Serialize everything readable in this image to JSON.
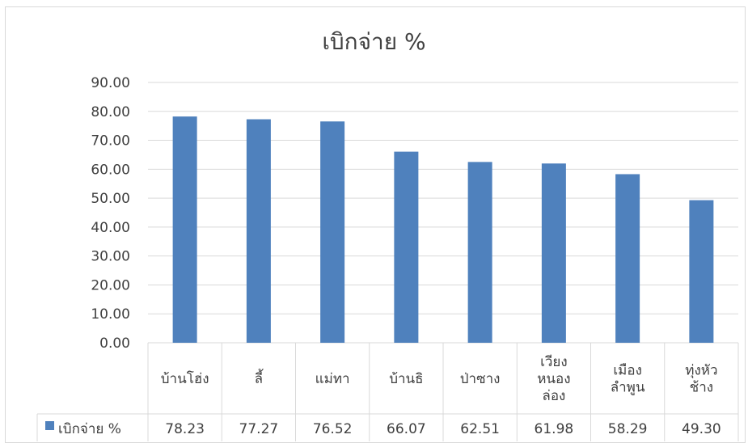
{
  "chart_data": {
    "type": "bar",
    "title": "เบิกจ่าย %",
    "categories": [
      [
        "บ้านโฮ่ง"
      ],
      [
        "ลี้"
      ],
      [
        "แม่ทา"
      ],
      [
        "บ้านธิ"
      ],
      [
        "ป่าซาง"
      ],
      [
        "เวียง",
        "หนอง",
        "ล่อง"
      ],
      [
        "เมือง",
        "ลำพูน"
      ],
      [
        "ทุ่งหัว",
        "ช้าง"
      ]
    ],
    "series": [
      {
        "name": "เบิกจ่าย %",
        "values": [
          78.23,
          77.27,
          76.52,
          66.07,
          62.51,
          61.98,
          58.29,
          49.3
        ],
        "value_labels": [
          "78.23",
          "77.27",
          "76.52",
          "66.07",
          "62.51",
          "61.98",
          "58.29",
          "49.30"
        ],
        "color": "#4f81bd"
      }
    ],
    "y_ticks": [
      "0.00",
      "10.00",
      "20.00",
      "30.00",
      "40.00",
      "50.00",
      "60.00",
      "70.00",
      "80.00",
      "90.00"
    ],
    "ylim": [
      0,
      90
    ],
    "grid": true,
    "data_table": true,
    "legend": "in data table"
  }
}
